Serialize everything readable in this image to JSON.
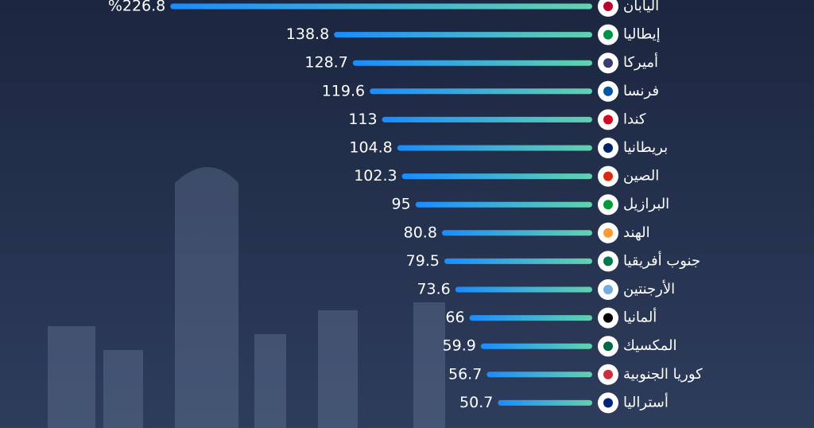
{
  "chart_data": {
    "type": "bar",
    "orientation": "horizontal",
    "categories": [
      "اليابان",
      "إيطاليا",
      "أميركا",
      "فرنسا",
      "كندا",
      "بريطانيا",
      "الصين",
      "البرازيل",
      "الهند",
      "جنوب أفريقيا",
      "الأرجنتين",
      "ألمانيا",
      "المكسيك",
      "كوريا الجنوبية",
      "أستراليا"
    ],
    "values": [
      226.8,
      138.8,
      128.7,
      119.6,
      113,
      104.8,
      102.3,
      95,
      80.8,
      79.5,
      73.6,
      66,
      59.9,
      56.7,
      50.7
    ],
    "value_labels": [
      "%226.8",
      "138.8",
      "128.7",
      "119.6",
      "113",
      "104.8",
      "102.3",
      "95",
      "80.8",
      "79.5",
      "73.6",
      "66",
      "59.9",
      "56.7",
      "50.7"
    ],
    "color": "#1a8cff"
  }
}
